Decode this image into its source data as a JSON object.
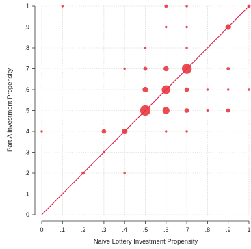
{
  "chart_data": {
    "type": "scatter",
    "title": "",
    "xlabel": "Naive Lottery Investment Propensity",
    "ylabel": "Part A Investment Propensity",
    "xlim": [
      0,
      1
    ],
    "ylim": [
      0,
      1
    ],
    "x_tick_labels": [
      "0",
      ".1",
      ".2",
      ".3",
      ".4",
      ".5",
      ".6",
      ".7",
      ".8",
      ".9",
      "1"
    ],
    "y_tick_labels": [
      "0",
      ".1",
      ".2",
      ".3",
      ".4",
      ".5",
      ".6",
      ".7",
      ".8",
      ".9",
      "1"
    ],
    "grid": true,
    "reference_line": {
      "type": "45-degree",
      "from": [
        0,
        0
      ],
      "to": [
        1,
        1
      ],
      "color": "#d81b4a"
    },
    "marker_color": "#e8323a",
    "marker_size_note": "marker area proportional to number of observations",
    "points": [
      {
        "x": 0.0,
        "y": 0.4,
        "weight": 1
      },
      {
        "x": 0.1,
        "y": 1.0,
        "weight": 1
      },
      {
        "x": 0.2,
        "y": 0.2,
        "weight": 2
      },
      {
        "x": 0.3,
        "y": 0.3,
        "weight": 1
      },
      {
        "x": 0.3,
        "y": 0.4,
        "weight": 4
      },
      {
        "x": 0.4,
        "y": 0.2,
        "weight": 1
      },
      {
        "x": 0.4,
        "y": 0.4,
        "weight": 6
      },
      {
        "x": 0.4,
        "y": 0.7,
        "weight": 1
      },
      {
        "x": 0.5,
        "y": 0.5,
        "weight": 20
      },
      {
        "x": 0.5,
        "y": 0.6,
        "weight": 6
      },
      {
        "x": 0.5,
        "y": 0.7,
        "weight": 3
      },
      {
        "x": 0.5,
        "y": 0.8,
        "weight": 1
      },
      {
        "x": 0.6,
        "y": 0.4,
        "weight": 1
      },
      {
        "x": 0.6,
        "y": 0.5,
        "weight": 9
      },
      {
        "x": 0.6,
        "y": 0.6,
        "weight": 14
      },
      {
        "x": 0.6,
        "y": 0.7,
        "weight": 5
      },
      {
        "x": 0.6,
        "y": 0.9,
        "weight": 1
      },
      {
        "x": 0.6,
        "y": 1.0,
        "weight": 2
      },
      {
        "x": 0.7,
        "y": 0.4,
        "weight": 1
      },
      {
        "x": 0.7,
        "y": 0.5,
        "weight": 4
      },
      {
        "x": 0.7,
        "y": 0.6,
        "weight": 4
      },
      {
        "x": 0.7,
        "y": 0.7,
        "weight": 18
      },
      {
        "x": 0.7,
        "y": 0.8,
        "weight": 1
      },
      {
        "x": 0.7,
        "y": 0.9,
        "weight": 1
      },
      {
        "x": 0.7,
        "y": 1.0,
        "weight": 1
      },
      {
        "x": 0.8,
        "y": 0.5,
        "weight": 1
      },
      {
        "x": 0.8,
        "y": 0.6,
        "weight": 1
      },
      {
        "x": 0.9,
        "y": 0.5,
        "weight": 3
      },
      {
        "x": 0.9,
        "y": 0.6,
        "weight": 1
      },
      {
        "x": 0.9,
        "y": 0.7,
        "weight": 2
      },
      {
        "x": 0.9,
        "y": 0.9,
        "weight": 6
      },
      {
        "x": 1.0,
        "y": 0.6,
        "weight": 1
      },
      {
        "x": 1.0,
        "y": 1.0,
        "weight": 2
      }
    ]
  }
}
